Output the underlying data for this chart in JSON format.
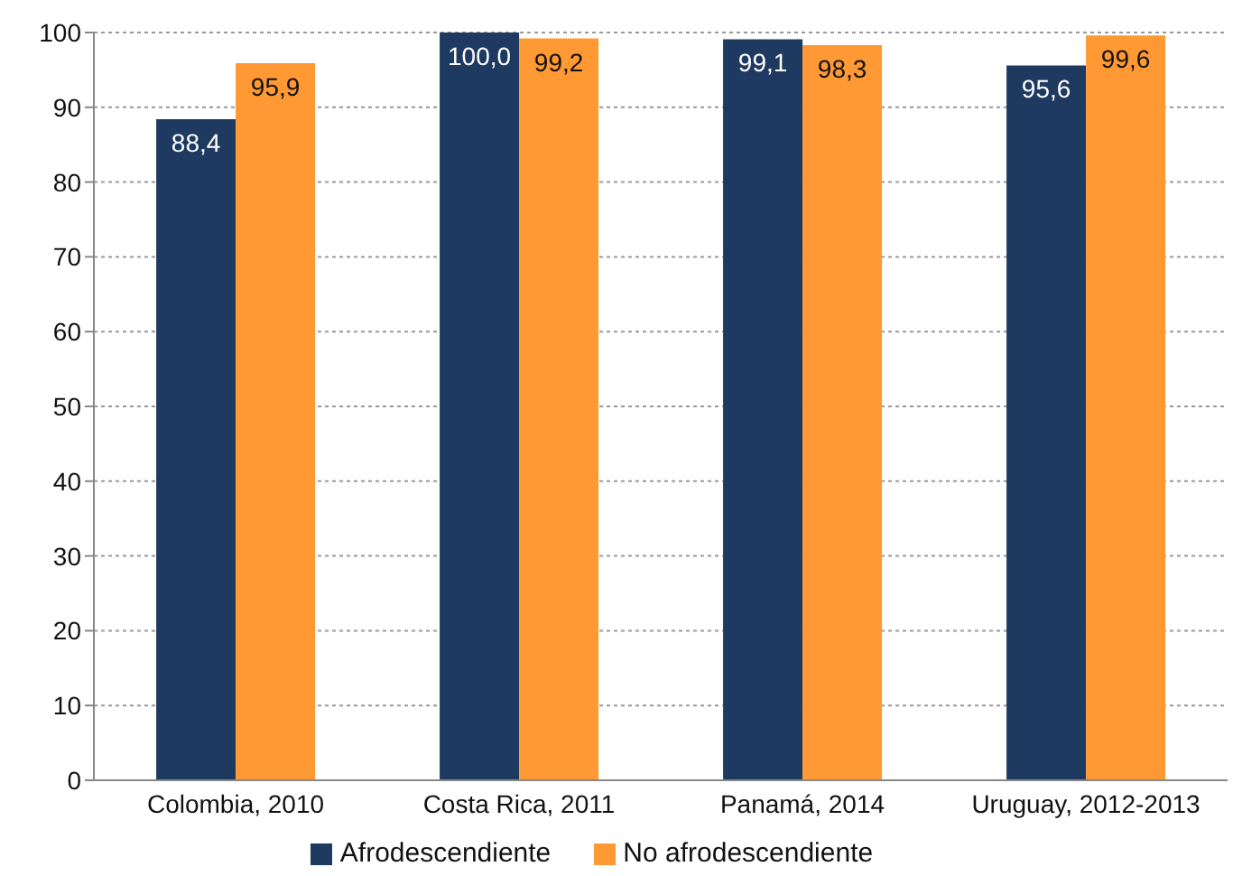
{
  "chart_data": {
    "type": "bar",
    "categories": [
      "Colombia, 2010",
      "Costa Rica, 2011",
      "Panamá, 2014",
      "Uruguay, 2012-2013"
    ],
    "series": [
      {
        "name": "Afrodescendiente",
        "color": "#1f3a60",
        "values": [
          88.4,
          100.0,
          99.1,
          95.6
        ],
        "value_labels": [
          "88,4",
          "100,0",
          "99,1",
          "95,6"
        ]
      },
      {
        "name": "No afrodescendiente",
        "color": "#ff9933",
        "values": [
          95.9,
          99.2,
          98.3,
          99.6
        ],
        "value_labels": [
          "95,9",
          "99,2",
          "98,3",
          "99,6"
        ]
      }
    ],
    "ylim": [
      0,
      100
    ],
    "yticks": [
      0,
      10,
      20,
      30,
      40,
      50,
      60,
      70,
      80,
      90,
      100
    ],
    "grid": "y",
    "legend": "bottom"
  }
}
